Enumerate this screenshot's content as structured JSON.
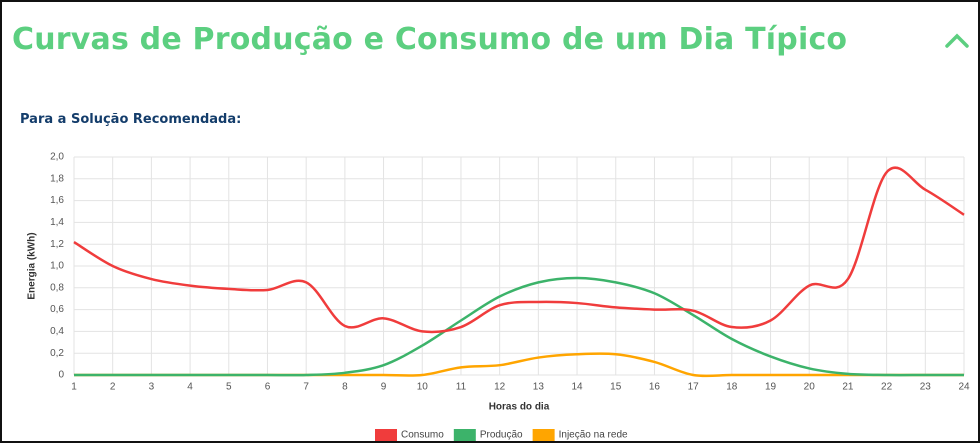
{
  "header": {
    "title": "Curvas de Produção e Consumo de um Dia Típico",
    "subtitle": "Para a Solução Recomendada:"
  },
  "chart_data": {
    "type": "line",
    "ylabel": "Energia (kWh)",
    "xlabel": "Horas do dia",
    "x": [
      1,
      2,
      3,
      4,
      5,
      6,
      7,
      8,
      9,
      10,
      11,
      12,
      13,
      14,
      15,
      16,
      17,
      18,
      19,
      20,
      21,
      22,
      23,
      24
    ],
    "xlim": [
      1,
      24
    ],
    "xticks": [
      1,
      2,
      3,
      4,
      5,
      6,
      7,
      8,
      9,
      10,
      11,
      12,
      13,
      14,
      15,
      16,
      17,
      18,
      19,
      20,
      21,
      22,
      23,
      24
    ],
    "ylim": [
      0,
      2
    ],
    "yticks": [
      0,
      {
        "value": 0.2,
        "label": "0,2"
      },
      {
        "value": 0.4,
        "label": "0,4"
      },
      {
        "value": 0.6,
        "label": "0,6"
      },
      {
        "value": 0.8,
        "label": "0,8"
      },
      {
        "value": 1.0,
        "label": "1,0"
      },
      {
        "value": 1.2,
        "label": "1,2"
      },
      {
        "value": 1.4,
        "label": "1,4"
      },
      {
        "value": 1.6,
        "label": "1,6"
      },
      {
        "value": 1.8,
        "label": "1,8"
      },
      {
        "value": 2.0,
        "label": "2,0"
      }
    ],
    "grid": true,
    "legend": "bottom",
    "series": [
      {
        "name": "Consumo",
        "color": "#f03c3c",
        "values": [
          1.22,
          1.0,
          0.88,
          0.82,
          0.79,
          0.78,
          0.85,
          0.45,
          0.52,
          0.4,
          0.44,
          0.64,
          0.67,
          0.66,
          0.62,
          0.6,
          0.59,
          0.44,
          0.5,
          0.82,
          0.88,
          1.86,
          1.7,
          1.47
        ]
      },
      {
        "name": "Produção",
        "color": "#3cb36a",
        "values": [
          0,
          0,
          0,
          0,
          0,
          0,
          0,
          0.02,
          0.09,
          0.27,
          0.5,
          0.72,
          0.85,
          0.89,
          0.85,
          0.75,
          0.55,
          0.33,
          0.17,
          0.06,
          0.01,
          0,
          0,
          0
        ]
      },
      {
        "name": "Injeção na rede",
        "color": "#ffa500",
        "values": [
          0,
          0,
          0,
          0,
          0,
          0,
          0,
          0,
          0,
          0,
          0.07,
          0.09,
          0.16,
          0.19,
          0.19,
          0.12,
          0,
          0,
          0,
          0,
          0,
          0,
          0,
          0
        ]
      }
    ]
  }
}
